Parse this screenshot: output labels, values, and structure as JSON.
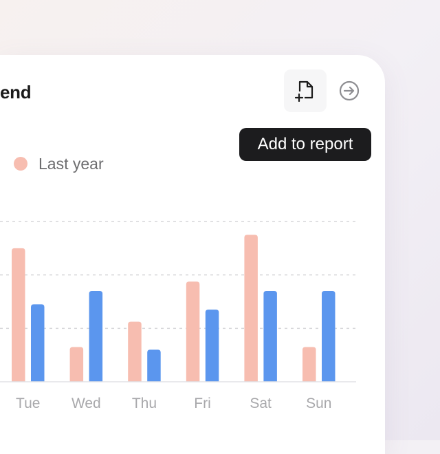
{
  "header": {
    "title": "end",
    "report_button": {
      "icon": "file-add-icon"
    },
    "next_button": {
      "icon": "arrow-right-circle-icon"
    },
    "tooltip": "Add to report"
  },
  "legend": {
    "label": "Last year",
    "color": "#f7bdb0"
  },
  "chart_data": {
    "type": "bar",
    "categories": [
      "Tue",
      "Wed",
      "Thu",
      "Fri",
      "Sat",
      "Sun"
    ],
    "series": [
      {
        "name": "Last year",
        "color": "#f7bdb0",
        "values": [
          10,
          2.6,
          4.5,
          7.5,
          11,
          2.6
        ]
      },
      {
        "name": "",
        "color": "#5b96ee",
        "values": [
          5.8,
          6.8,
          2.4,
          5.4,
          6.8,
          6.8
        ]
      }
    ],
    "ylim": [
      0,
      12
    ],
    "gridlines": [
      4,
      8,
      12
    ],
    "grid": true
  }
}
